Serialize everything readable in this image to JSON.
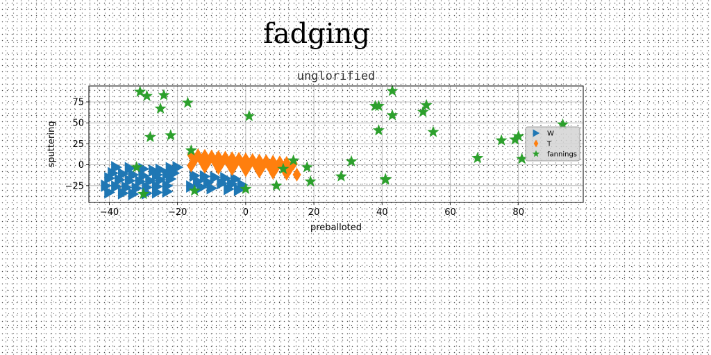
{
  "suptitle": "fadging",
  "chart_data": {
    "type": "scatter",
    "title": "unglorified",
    "xlabel": "preballoted",
    "ylabel": "sputtering",
    "xlim": [
      -46,
      99
    ],
    "ylim": [
      -45,
      94
    ],
    "xticks": [
      -40,
      -20,
      0,
      20,
      40,
      60,
      80
    ],
    "yticks": [
      -25,
      0,
      25,
      50,
      75
    ],
    "grid": true,
    "legend_position": "right",
    "series": [
      {
        "name": "W",
        "marker": "triangle-right",
        "color": "#1f77b4",
        "x": [
          -38,
          -34,
          -30,
          -27,
          -25,
          -22,
          -20,
          -39,
          -36,
          -33,
          -30,
          -26,
          -23,
          -21,
          -40,
          -37,
          -34,
          -31,
          -28,
          -25,
          -22,
          -41,
          -38,
          -35,
          -32,
          -29,
          -26,
          -23,
          -40,
          -36,
          -33,
          -29,
          -26,
          -23,
          -15,
          -12,
          -9,
          -6,
          -3,
          -14,
          -11,
          -7,
          -4,
          -1,
          -16,
          -13,
          -10,
          -5,
          -2
        ],
        "y": [
          -3,
          -4,
          -5,
          -7,
          -6,
          -4,
          -3,
          -10,
          -11,
          -12,
          -13,
          -12,
          -11,
          -10,
          -16,
          -18,
          -19,
          -20,
          -19,
          -18,
          -17,
          -25,
          -26,
          -27,
          -28,
          -27,
          -26,
          -25,
          -33,
          -34,
          -35,
          -34,
          -33,
          -32,
          -13,
          -14,
          -15,
          -16,
          -17,
          -20,
          -21,
          -22,
          -23,
          -24,
          -26,
          -27,
          -28,
          -29,
          -30
        ]
      },
      {
        "name": "T",
        "marker": "thin-diamond",
        "color": "#ff7f0e",
        "x": [
          -16,
          -14,
          -12,
          -10,
          -8,
          -6,
          -4,
          -2,
          0,
          2,
          4,
          6,
          8,
          10,
          12,
          14,
          -15,
          -13,
          -11,
          -9,
          -7,
          -5,
          -3,
          -1,
          1,
          3,
          5,
          7,
          9,
          11,
          13,
          -16,
          -12,
          -8,
          -4,
          0,
          4,
          8,
          12,
          15
        ],
        "y": [
          12,
          11.3,
          10.6,
          9.9,
          9.2,
          8.5,
          7.8,
          7.1,
          6.4,
          5.7,
          5,
          4.3,
          3.6,
          2.9,
          2.2,
          1.5,
          5.5,
          4.8,
          4.1,
          3.4,
          2.7,
          2,
          1.3,
          0.6,
          -0.1,
          -0.8,
          -1.5,
          -2.2,
          -2.9,
          -3.6,
          -4.3,
          -1,
          -2.4,
          -3.8,
          -5.2,
          -6.6,
          -8,
          -9.4,
          -10.8,
          -11.8
        ]
      },
      {
        "name": "fannings",
        "marker": "star",
        "color": "#2ca02c",
        "x": [
          -31,
          -29,
          -24,
          -25,
          -17,
          -28,
          -22,
          -32,
          -16,
          -15,
          1,
          -30,
          0,
          9,
          11,
          14,
          18,
          19,
          28,
          31,
          38,
          39,
          39,
          41,
          41,
          43,
          43,
          52,
          53,
          55,
          68,
          75,
          79,
          80,
          81,
          93
        ],
        "y": [
          87,
          82,
          83,
          67,
          74,
          33,
          35,
          -3,
          17,
          -31,
          58,
          -35,
          -29,
          -25,
          -5,
          5,
          -3,
          -20,
          -14,
          4,
          70,
          70,
          41,
          -17,
          -18,
          88,
          59,
          63,
          71,
          39,
          8,
          29,
          30,
          34,
          7,
          48
        ]
      }
    ]
  }
}
